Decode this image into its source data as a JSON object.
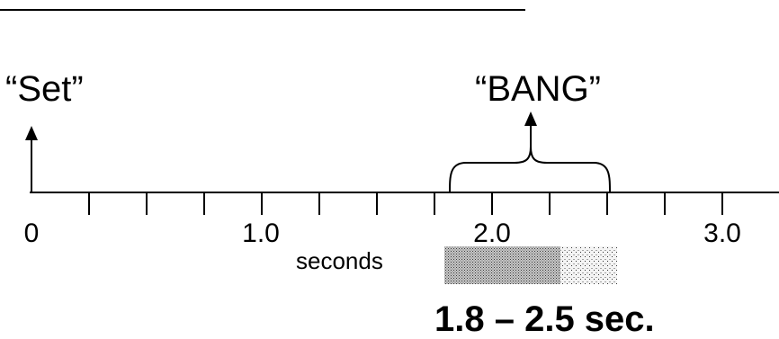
{
  "labels": {
    "set": "“Set”",
    "bang": "“BANG”",
    "unit": "seconds",
    "range": "1.8 – 2.5 sec."
  },
  "timeline": {
    "min": 0,
    "max": 3.25,
    "minor_step": 0.25,
    "tick_labels": [
      {
        "value": 0,
        "text": "0"
      },
      {
        "value": 1,
        "text": "1.0"
      },
      {
        "value": 2,
        "text": "2.0"
      },
      {
        "value": 3,
        "text": "3.0"
      }
    ],
    "set_time": 0,
    "bang_window": [
      1.8,
      2.5
    ],
    "shaded_bands": [
      {
        "from": 1.8,
        "to": 2.3,
        "density": "dense"
      },
      {
        "from": 2.3,
        "to": 2.55,
        "density": "sparse"
      }
    ]
  },
  "colors": {
    "line": "#000000",
    "background": "#ffffff"
  }
}
